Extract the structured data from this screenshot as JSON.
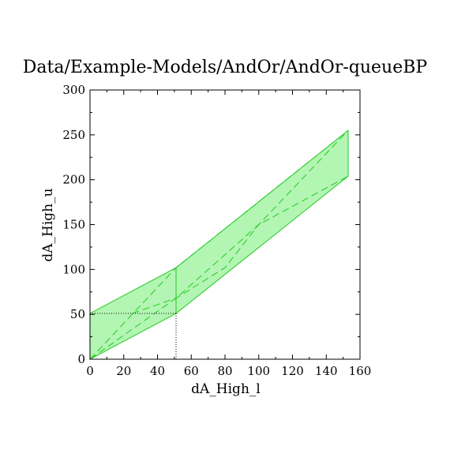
{
  "chart_data": {
    "type": "area",
    "title": "Data/Example-Models/AndOr/AndOr-queueBP",
    "xlabel": "dA_High_l",
    "ylabel": "dA_High_u",
    "xlim": [
      0,
      160
    ],
    "ylim": [
      0,
      300
    ],
    "x_ticks": [
      0,
      20,
      40,
      60,
      80,
      100,
      120,
      140,
      160
    ],
    "y_ticks": [
      0,
      50,
      100,
      150,
      200,
      250,
      300
    ],
    "grid": false,
    "colors": {
      "fill": "#b3f5b3",
      "line": "#22cc22",
      "marker": "#000000"
    },
    "region": [
      {
        "x": 0,
        "y": 0
      },
      {
        "x": 0,
        "y": 51
      },
      {
        "x": 51,
        "y": 102
      },
      {
        "x": 153,
        "y": 255
      },
      {
        "x": 153,
        "y": 204
      },
      {
        "x": 51,
        "y": 51
      }
    ],
    "series": [
      {
        "style": "dashed",
        "points": [
          [
            0,
            0
          ],
          [
            51,
            102
          ],
          [
            153,
            255
          ]
        ]
      },
      {
        "style": "dashed",
        "points": [
          [
            0,
            0
          ],
          [
            51,
            68
          ],
          [
            100,
            150
          ],
          [
            153,
            204
          ]
        ]
      },
      {
        "style": "dashed",
        "points": [
          [
            25,
            51
          ],
          [
            51,
            68
          ],
          [
            80,
            102
          ],
          [
            100,
            150
          ],
          [
            153,
            255
          ]
        ]
      },
      {
        "style": "solid",
        "points": [
          [
            51,
            51
          ],
          [
            51,
            102
          ]
        ]
      }
    ],
    "selected_point": {
      "x": 51,
      "y": 51
    }
  }
}
